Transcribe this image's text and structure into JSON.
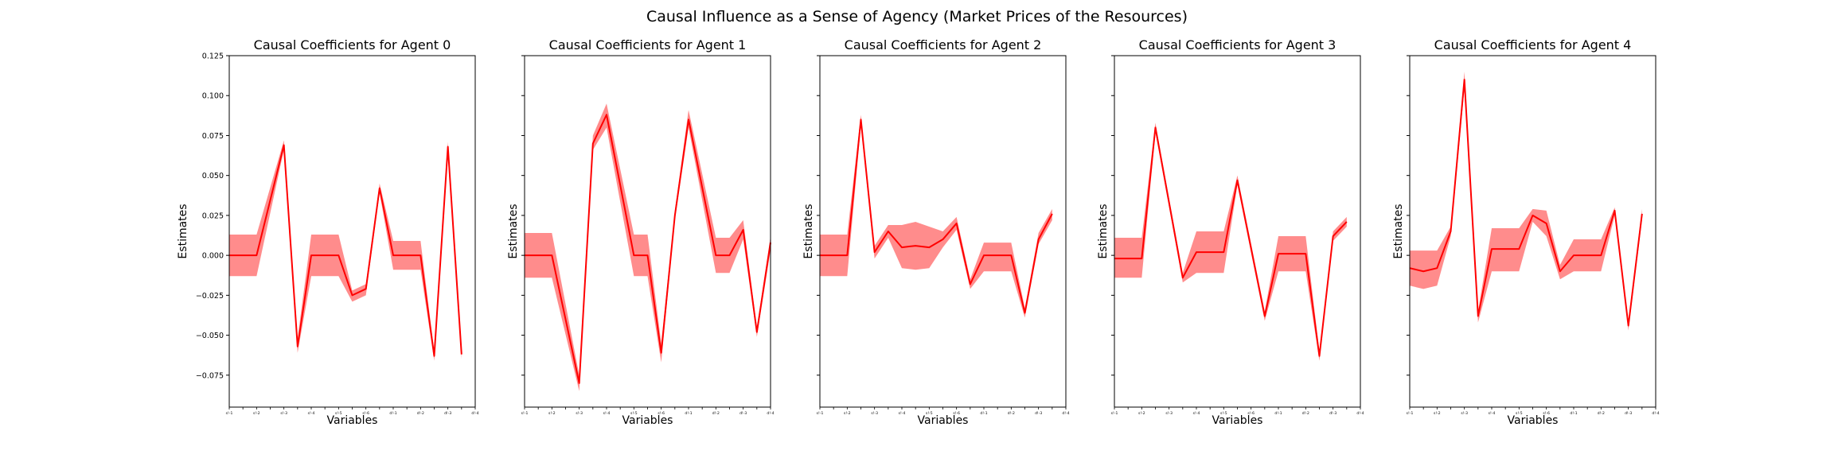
{
  "figure": {
    "title": "Causal Influence as a Sense of Agency (Market Prices of the Resources)"
  },
  "colors": {
    "line": "#ff0000",
    "band": "#ff8080"
  },
  "chart_data": [
    {
      "type": "line",
      "title": "Causal Coefficients for Agent 0",
      "xlabel": "Variables",
      "ylabel": "Estimates",
      "ylim": [
        -0.095,
        0.125
      ],
      "yticks": [
        -0.075,
        -0.05,
        -0.025,
        0.0,
        0.025,
        0.05,
        0.075,
        0.1,
        0.125
      ],
      "ytick_labels": [
        "−0.075",
        "−0.050",
        "−0.025",
        "0.000",
        "0.025",
        "0.050",
        "0.075",
        "0.100",
        "0.125"
      ],
      "categories": [
        "s!-1",
        "",
        "s!-2",
        "",
        "s!-3",
        "",
        "s!-4",
        "",
        "s!-5",
        "",
        "s!-6",
        "",
        "d!-1",
        "",
        "d!-2",
        "",
        "d!-3",
        "",
        "d!-4"
      ],
      "x": [
        0,
        2,
        4,
        5,
        6,
        8,
        9,
        10,
        11,
        12,
        14,
        15,
        16,
        17,
        18
      ],
      "values": [
        0.0,
        0.0,
        0.069,
        -0.057,
        0.0,
        0.0,
        -0.025,
        -0.021,
        0.042,
        0.0,
        0.0,
        -0.063,
        0.068,
        -0.062,
        null
      ],
      "upper": [
        0.013,
        0.013,
        0.072,
        -0.052,
        0.013,
        0.013,
        -0.022,
        -0.018,
        0.045,
        0.009,
        0.009,
        -0.06,
        0.071,
        -0.058,
        null
      ],
      "lower": [
        -0.013,
        -0.013,
        0.066,
        -0.061,
        -0.013,
        -0.013,
        -0.029,
        -0.025,
        0.039,
        -0.009,
        -0.009,
        -0.066,
        0.065,
        -0.065,
        null
      ]
    },
    {
      "type": "line",
      "title": "Causal Coefficients for Agent 1",
      "xlabel": "Variables",
      "ylabel": "Estimates",
      "ylim": [
        -0.095,
        0.125
      ],
      "categories": [
        "s!-1",
        "",
        "s!-2",
        "",
        "s!-3",
        "",
        "s!-4",
        "",
        "s!-5",
        "",
        "s!-6",
        "",
        "d!-1",
        "",
        "d!-2",
        "",
        "d!-3",
        "",
        "d!-4"
      ],
      "x": [
        0,
        2,
        4,
        5,
        6,
        8,
        9,
        10,
        11,
        12,
        14,
        15,
        16,
        17,
        18
      ],
      "values": [
        0.0,
        0.0,
        -0.08,
        0.07,
        0.088,
        0.0,
        0.0,
        -0.061,
        0.025,
        0.085,
        0.0,
        0.0,
        0.016,
        -0.048,
        0.008
      ],
      "upper": [
        0.014,
        0.014,
        -0.075,
        0.075,
        0.095,
        0.013,
        0.013,
        -0.055,
        0.028,
        0.091,
        0.011,
        0.011,
        0.022,
        -0.045,
        0.012
      ],
      "lower": [
        -0.014,
        -0.014,
        -0.085,
        0.066,
        0.08,
        -0.013,
        -0.013,
        -0.067,
        0.022,
        0.08,
        -0.011,
        -0.011,
        0.01,
        -0.051,
        0.003
      ]
    },
    {
      "type": "line",
      "title": "Causal Coefficients for Agent 2",
      "xlabel": "Variables",
      "ylabel": "Estimates",
      "ylim": [
        -0.095,
        0.125
      ],
      "categories": [
        "s!-1",
        "",
        "s!-2",
        "",
        "s!-3",
        "",
        "s!-4",
        "",
        "s!-5",
        "",
        "s!-6",
        "",
        "d!-1",
        "",
        "d!-2",
        "",
        "d!-3",
        "",
        "d!-4"
      ],
      "x": [
        0,
        2,
        3,
        4,
        5,
        6,
        7,
        8,
        9,
        10,
        11,
        12,
        14,
        15,
        16,
        17,
        18
      ],
      "values": [
        0.0,
        0.0,
        0.085,
        0.002,
        0.015,
        0.005,
        0.006,
        0.005,
        0.01,
        0.02,
        -0.018,
        0.0,
        0.0,
        -0.036,
        0.01,
        0.026,
        null
      ],
      "upper": [
        0.013,
        0.013,
        0.088,
        0.006,
        0.019,
        0.019,
        0.021,
        0.018,
        0.015,
        0.024,
        -0.015,
        0.008,
        0.008,
        -0.033,
        0.014,
        0.029,
        null
      ],
      "lower": [
        -0.013,
        -0.013,
        0.081,
        -0.002,
        0.011,
        -0.008,
        -0.009,
        -0.008,
        0.005,
        0.016,
        -0.021,
        -0.01,
        -0.01,
        -0.039,
        0.007,
        0.022,
        null
      ]
    },
    {
      "type": "line",
      "title": "Causal Coefficients for Agent 3",
      "xlabel": "Variables",
      "ylabel": "Estimates",
      "ylim": [
        -0.095,
        0.125
      ],
      "categories": [
        "s!-1",
        "",
        "s!-2",
        "",
        "s!-3",
        "",
        "s!-4",
        "",
        "s!-5",
        "",
        "s!-6",
        "",
        "d!-1",
        "",
        "d!-2",
        "",
        "d!-3",
        "",
        "d!-4"
      ],
      "x": [
        0,
        2,
        3,
        5,
        6,
        8,
        9,
        11,
        12,
        14,
        15,
        16,
        17,
        18
      ],
      "values": [
        -0.002,
        -0.002,
        0.08,
        -0.014,
        0.002,
        0.002,
        0.047,
        -0.038,
        0.001,
        0.001,
        -0.063,
        0.012,
        0.021,
        null
      ],
      "upper": [
        0.011,
        0.011,
        0.083,
        -0.011,
        0.015,
        0.015,
        0.05,
        -0.035,
        0.012,
        0.012,
        -0.06,
        0.015,
        0.024,
        null
      ],
      "lower": [
        -0.014,
        -0.014,
        0.077,
        -0.017,
        -0.011,
        -0.011,
        0.044,
        -0.041,
        -0.01,
        -0.01,
        -0.066,
        0.009,
        0.018,
        null
      ]
    },
    {
      "type": "line",
      "title": "Causal Coefficients for Agent 4",
      "xlabel": "Variables",
      "ylabel": "Estimates",
      "ylim": [
        -0.095,
        0.125
      ],
      "categories": [
        "s!-1",
        "",
        "s!-2",
        "",
        "s!-3",
        "",
        "s!-4",
        "",
        "s!-5",
        "",
        "s!-6",
        "",
        "d!-1",
        "",
        "d!-2",
        "",
        "d!-3",
        "",
        "d!-4"
      ],
      "x": [
        0,
        1,
        2,
        3,
        4,
        5,
        6,
        8,
        9,
        10,
        11,
        12,
        14,
        15,
        16,
        17,
        18
      ],
      "values": [
        -0.008,
        -0.01,
        -0.008,
        0.015,
        0.11,
        -0.038,
        0.004,
        0.004,
        0.025,
        0.02,
        -0.01,
        0.0,
        0.0,
        0.028,
        -0.044,
        0.026,
        null
      ],
      "upper": [
        0.003,
        0.003,
        0.003,
        0.018,
        0.115,
        -0.035,
        0.017,
        0.017,
        0.029,
        0.028,
        -0.006,
        0.01,
        0.01,
        0.03,
        -0.041,
        0.029,
        null
      ],
      "lower": [
        -0.019,
        -0.021,
        -0.019,
        0.012,
        0.104,
        -0.042,
        -0.01,
        -0.01,
        0.021,
        0.012,
        -0.015,
        -0.01,
        -0.01,
        0.025,
        -0.047,
        0.022,
        null
      ]
    }
  ]
}
